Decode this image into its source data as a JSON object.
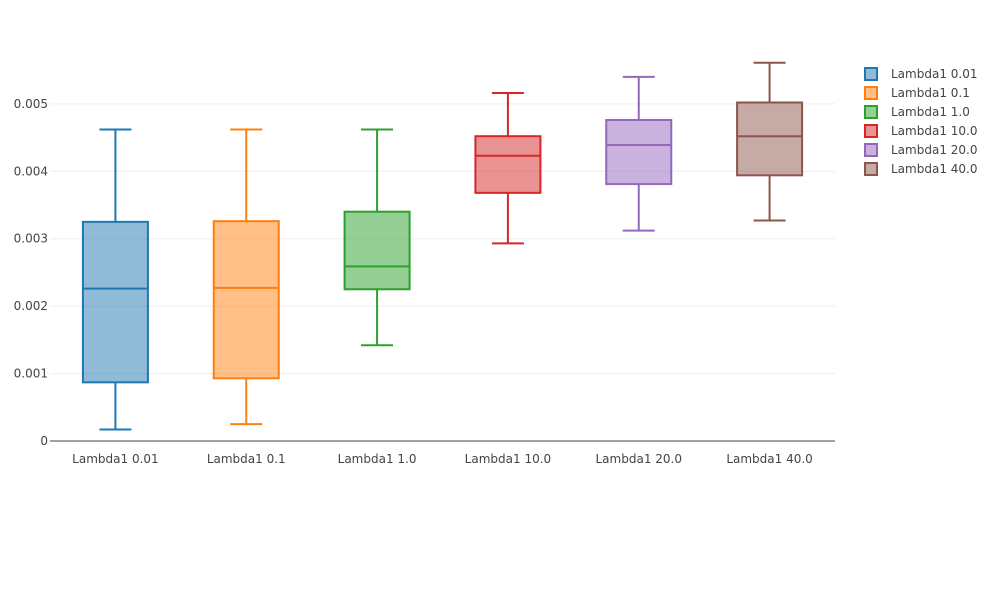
{
  "chart_data": {
    "type": "box",
    "title": "",
    "xlabel": "",
    "ylabel": "",
    "ylim": [
      0,
      0.00565
    ],
    "yticks": [
      0,
      0.001,
      0.002,
      0.003,
      0.004,
      0.005
    ],
    "ytick_labels": [
      "0",
      "0.001",
      "0.002",
      "0.003",
      "0.004",
      "0.005"
    ],
    "grid": true,
    "legend_position": "right",
    "series": [
      {
        "name": "Lambda1  0.01",
        "color": "#1f77b4",
        "min": 0.00017,
        "q1": 0.00087,
        "median": 0.00226,
        "q3": 0.00325,
        "max": 0.00462
      },
      {
        "name": "Lambda1  0.1",
        "color": "#ff7f0e",
        "min": 0.00025,
        "q1": 0.00093,
        "median": 0.00227,
        "q3": 0.00326,
        "max": 0.00462
      },
      {
        "name": "Lambda1  1.0",
        "color": "#2ca02c",
        "min": 0.00142,
        "q1": 0.00225,
        "median": 0.00259,
        "q3": 0.0034,
        "max": 0.00462
      },
      {
        "name": "Lambda1  10.0",
        "color": "#d62728",
        "min": 0.00293,
        "q1": 0.00368,
        "median": 0.00423,
        "q3": 0.00452,
        "max": 0.00516
      },
      {
        "name": "Lambda1  20.0",
        "color": "#9467bd",
        "min": 0.00312,
        "q1": 0.00381,
        "median": 0.00439,
        "q3": 0.00476,
        "max": 0.0054
      },
      {
        "name": "Lambda1  40.0",
        "color": "#8c564b",
        "min": 0.00327,
        "q1": 0.00394,
        "median": 0.00452,
        "q3": 0.00502,
        "max": 0.00561
      }
    ]
  }
}
